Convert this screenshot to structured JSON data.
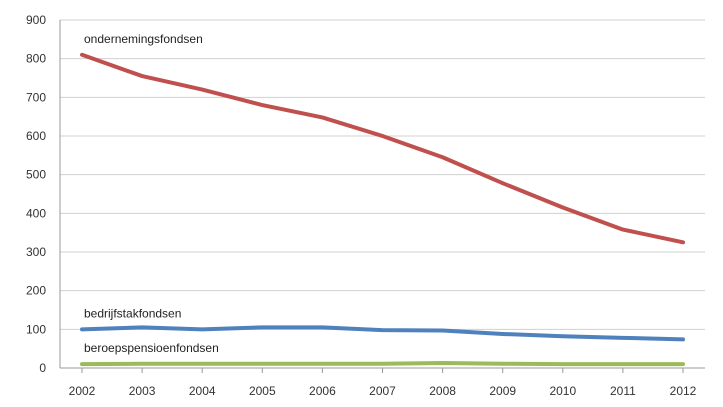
{
  "chart_data": {
    "type": "line",
    "x": [
      "2002",
      "2003",
      "2004",
      "2005",
      "2006",
      "2007",
      "2008",
      "2009",
      "2010",
      "2011",
      "2012"
    ],
    "ylim": [
      0,
      900
    ],
    "yticks": [
      "0",
      "100",
      "200",
      "300",
      "400",
      "500",
      "600",
      "700",
      "800",
      "900"
    ],
    "grid": true,
    "series": [
      {
        "name": "ondernemingsfondsen",
        "color": "#c0504d",
        "values": [
          810,
          755,
          720,
          680,
          648,
          600,
          545,
          478,
          415,
          358,
          325
        ]
      },
      {
        "name": "bedrijfstakfondsen",
        "color": "#4f81bd",
        "values": [
          100,
          105,
          100,
          105,
          105,
          98,
          97,
          88,
          82,
          78,
          74
        ]
      },
      {
        "name": "beroepspensioenfondsen",
        "color": "#9bbb59",
        "values": [
          10,
          11,
          11,
          11,
          11,
          11,
          13,
          11,
          10,
          10,
          10
        ]
      }
    ]
  }
}
